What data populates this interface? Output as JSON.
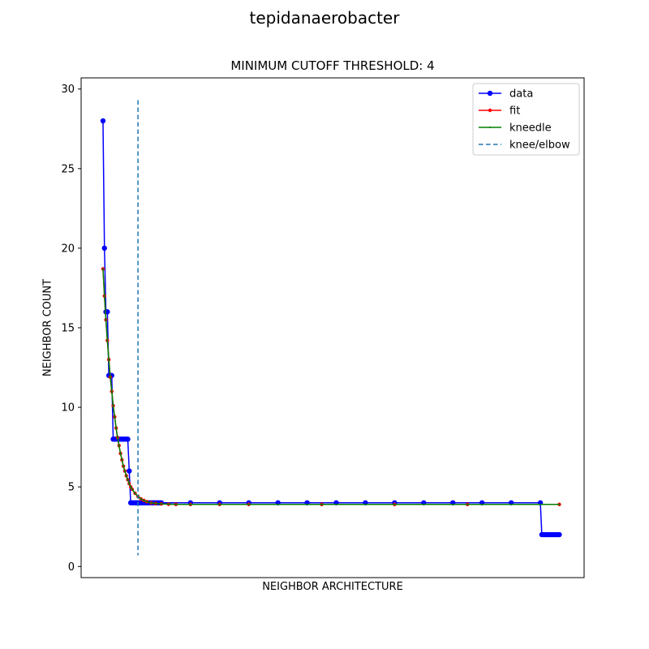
{
  "figure": {
    "suptitle": "tepidanaerobacter"
  },
  "chart_data": {
    "type": "line",
    "title": "MINIMUM CUTOFF THRESHOLD: 4",
    "xlabel": "NEIGHBOR ARCHITECTURE",
    "ylabel": "NEIGHBOR COUNT",
    "xlim": [
      -15,
      330
    ],
    "ylim": [
      -0.7,
      30.7
    ],
    "x_ticks_shown": false,
    "y_ticks": [
      0,
      5,
      10,
      15,
      20,
      25,
      30
    ],
    "grid": false,
    "legend_position": "top-right",
    "legend": [
      "data",
      "fit",
      "kneedle",
      "knee/elbow"
    ],
    "series": [
      {
        "name": "data",
        "color": "#0000ff",
        "marker": "circle",
        "x": [
          0,
          1,
          2,
          3,
          4,
          5,
          6,
          7,
          8,
          9,
          10,
          11,
          12,
          13,
          14,
          15,
          16,
          17,
          18,
          19,
          20,
          21,
          22,
          23,
          24,
          25,
          26,
          27,
          28,
          29,
          30,
          31,
          32,
          33,
          34,
          35,
          36,
          37,
          38,
          39,
          40,
          60,
          80,
          100,
          120,
          140,
          160,
          180,
          200,
          220,
          240,
          260,
          280,
          300,
          301,
          302,
          303,
          304,
          305,
          306,
          307,
          308,
          309,
          310,
          311,
          312,
          313
        ],
        "y": [
          28,
          20,
          16,
          16,
          12,
          12,
          12,
          8,
          8,
          8,
          8,
          8,
          8,
          8,
          8,
          8,
          8,
          8,
          6,
          4,
          4,
          4,
          4,
          4,
          4,
          4,
          4,
          4,
          4,
          4,
          4,
          4,
          4,
          4,
          4,
          4,
          4,
          4,
          4,
          4,
          4,
          4,
          4,
          4,
          4,
          4,
          4,
          4,
          4,
          4,
          4,
          4,
          4,
          4,
          2,
          2,
          2,
          2,
          2,
          2,
          2,
          2,
          2,
          2,
          2,
          2,
          2
        ]
      },
      {
        "name": "fit",
        "color": "#ff0000",
        "marker": "circle-small",
        "x": [
          0,
          1,
          2,
          3,
          4,
          5,
          6,
          7,
          8,
          9,
          10,
          11,
          12,
          13,
          14,
          15,
          16,
          17,
          18,
          19,
          20,
          22,
          24,
          26,
          28,
          30,
          33,
          36,
          40,
          45,
          50,
          60,
          80,
          100,
          150,
          200,
          250,
          313
        ],
        "y": [
          18.7,
          17.0,
          15.5,
          14.2,
          13.0,
          11.9,
          11.0,
          10.1,
          9.4,
          8.7,
          8.1,
          7.6,
          7.1,
          6.7,
          6.3,
          6.0,
          5.7,
          5.45,
          5.2,
          5.0,
          4.85,
          4.6,
          4.4,
          4.25,
          4.15,
          4.07,
          4.0,
          3.96,
          3.93,
          3.91,
          3.9,
          3.9,
          3.9,
          3.9,
          3.9,
          3.9,
          3.9,
          3.9
        ]
      },
      {
        "name": "kneedle",
        "color": "#008000",
        "marker": "dot",
        "x": [
          0,
          1,
          2,
          3,
          4,
          5,
          6,
          7,
          8,
          9,
          10,
          11,
          12,
          13,
          14,
          15,
          16,
          17,
          18,
          19,
          20,
          22,
          24,
          26,
          28,
          30,
          33,
          36,
          40,
          45,
          50,
          60,
          80,
          100,
          150,
          200,
          250,
          313
        ],
        "y": [
          18.7,
          17.0,
          15.5,
          14.2,
          13.0,
          11.9,
          11.0,
          10.1,
          9.4,
          8.7,
          8.1,
          7.6,
          7.1,
          6.7,
          6.3,
          6.0,
          5.7,
          5.45,
          5.2,
          5.0,
          4.85,
          4.6,
          4.4,
          4.25,
          4.15,
          4.07,
          4.0,
          3.96,
          3.93,
          3.91,
          3.9,
          3.9,
          3.9,
          3.9,
          3.9,
          3.9,
          3.9,
          3.9
        ]
      }
    ],
    "knee": {
      "name": "knee/elbow",
      "color": "#1f77b4",
      "x": 24,
      "ymin": 0.7,
      "ymax": 29.3
    }
  }
}
